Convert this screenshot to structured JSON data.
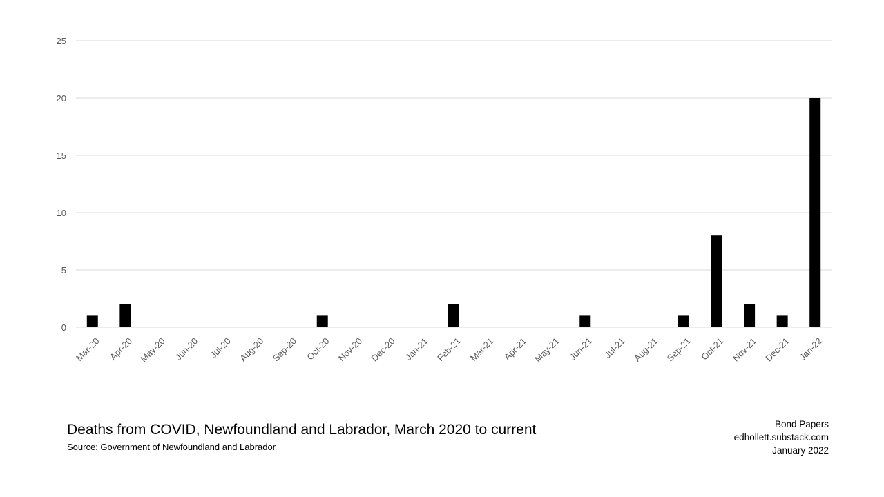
{
  "chart_data": {
    "type": "bar",
    "title": "Deaths from COVID, Newfoundland and Labrador, March 2020 to current",
    "source": "Source:  Government of Newfoundland and Labrador",
    "xlabel": "",
    "ylabel": "",
    "ylim": [
      0,
      25
    ],
    "yticks": [
      0,
      5,
      10,
      15,
      20,
      25
    ],
    "grid": true,
    "legend": "none",
    "bar_color": "#000000",
    "grid_color": "#d9d9d9",
    "categories": [
      "Mar-20",
      "Apr-20",
      "May-20",
      "Jun-20",
      "Jul-20",
      "Aug-20",
      "Sep-20",
      "Oct-20",
      "Nov-20",
      "Dec-20",
      "Jan-21",
      "Feb-21",
      "Mar-21",
      "Apr-21",
      "May-21",
      "Jun-21",
      "Jul-21",
      "Aug-21",
      "Sep-21",
      "Oct-21",
      "Nov-21",
      "Dec-21",
      "Jan-22"
    ],
    "values": [
      1,
      2,
      0,
      0,
      0,
      0,
      0,
      1,
      0,
      0,
      0,
      2,
      0,
      0,
      0,
      1,
      0,
      0,
      1,
      8,
      2,
      1,
      20
    ]
  },
  "credits": {
    "line1": "Bond Papers",
    "line2": "edhollett.substack.com",
    "line3": "January 2022"
  }
}
